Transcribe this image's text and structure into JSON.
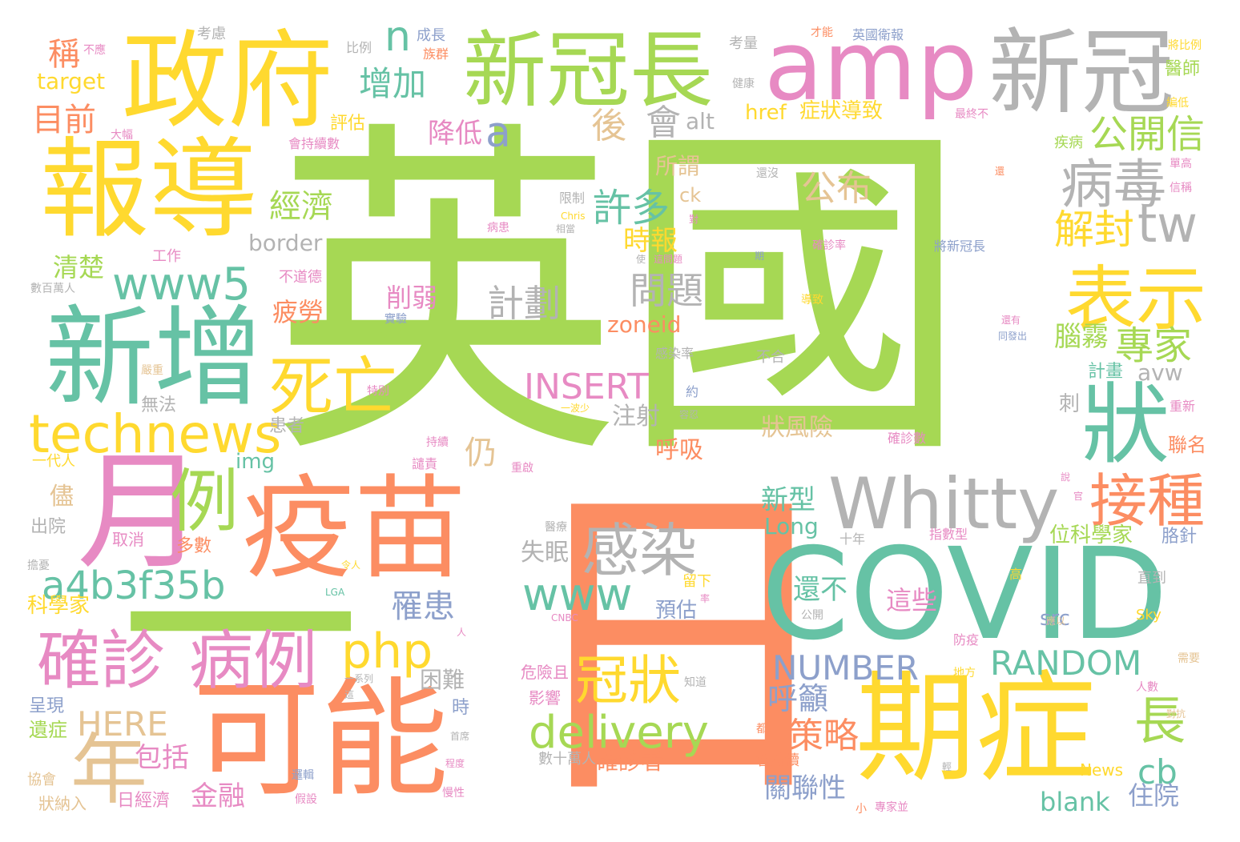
{
  "palette": {
    "green": "#a6d854",
    "orange": "#fc8d62",
    "yellow": "#ffd92f",
    "teal": "#66c2a5",
    "pink": "#e78ac3",
    "gray": "#b3b3b3",
    "tan": "#e5c494",
    "blue": "#8da0cb"
  },
  "words": [
    {
      "text": "英國",
      "color": "#a6d854"
    },
    {
      "text": "日",
      "color": "#fc8d62"
    },
    {
      "text": "一",
      "color": "#a6d854"
    },
    {
      "text": "政府",
      "color": "#ffd92f"
    },
    {
      "text": "報導",
      "color": "#ffd92f"
    },
    {
      "text": "新增",
      "color": "#66c2a5"
    },
    {
      "text": "月",
      "color": "#e78ac3"
    },
    {
      "text": "疫苗",
      "color": "#fc8d62"
    },
    {
      "text": "可能",
      "color": "#fc8d62"
    },
    {
      "text": "新冠長",
      "color": "#a6d854"
    },
    {
      "text": "amp",
      "color": "#e78ac3"
    },
    {
      "text": "新冠",
      "color": "#b3b3b3"
    },
    {
      "text": "COVID",
      "color": "#66c2a5"
    },
    {
      "text": "期症",
      "color": "#ffd92f"
    },
    {
      "text": "狀",
      "color": "#66c2a5"
    },
    {
      "text": "表示",
      "color": "#ffd92f"
    },
    {
      "text": "Whitty",
      "color": "#b3b3b3"
    },
    {
      "text": "接種",
      "color": "#fc8d62"
    },
    {
      "text": "病毒",
      "color": "#b3b3b3"
    },
    {
      "text": "tw",
      "color": "#b3b3b3"
    },
    {
      "text": "公開信",
      "color": "#a6d854"
    },
    {
      "text": "解封",
      "color": "#ffd92f"
    },
    {
      "text": "專家",
      "color": "#a6d854"
    },
    {
      "text": "腦霧",
      "color": "#a6d854"
    },
    {
      "text": "avw",
      "color": "#b3b3b3"
    },
    {
      "text": "確診",
      "color": "#e78ac3"
    },
    {
      "text": "病例",
      "color": "#e78ac3"
    },
    {
      "text": "年",
      "color": "#e5c494"
    },
    {
      "text": "例",
      "color": "#a6d854"
    },
    {
      "text": "technews",
      "color": "#ffd92f"
    },
    {
      "text": "a4b3f35b",
      "color": "#66c2a5"
    },
    {
      "text": "死亡",
      "color": "#ffd92f"
    },
    {
      "text": "www5",
      "color": "#66c2a5"
    },
    {
      "text": "感染",
      "color": "#b3b3b3"
    },
    {
      "text": "www",
      "color": "#66c2a5"
    },
    {
      "text": "php",
      "color": "#ffd92f"
    },
    {
      "text": "冠狀",
      "color": "#ffd92f"
    },
    {
      "text": "delivery",
      "color": "#a6d854"
    },
    {
      "text": "NUMBER",
      "color": "#8da0cb"
    },
    {
      "text": "RANDOM",
      "color": "#66c2a5"
    },
    {
      "text": "INSERT",
      "color": "#e78ac3"
    },
    {
      "text": "長",
      "color": "#a6d854"
    },
    {
      "text": "cb",
      "color": "#66c2a5"
    },
    {
      "text": "策略",
      "color": "#fc8d62"
    },
    {
      "text": "呼籲",
      "color": "#8da0cb"
    },
    {
      "text": "公布",
      "color": "#e5c494"
    },
    {
      "text": "許多",
      "color": "#66c2a5"
    },
    {
      "text": "計劃",
      "color": "#b3b3b3"
    },
    {
      "text": "問題",
      "color": "#b3b3b3"
    },
    {
      "text": "增加",
      "color": "#66c2a5"
    },
    {
      "text": "n",
      "color": "#66c2a5"
    },
    {
      "text": "a",
      "color": "#8da0cb"
    },
    {
      "text": "會",
      "color": "#b3b3b3"
    },
    {
      "text": "降低",
      "color": "#e78ac3"
    },
    {
      "text": "後",
      "color": "#e5c494"
    },
    {
      "text": "目前",
      "color": "#fc8d62"
    },
    {
      "text": "稱",
      "color": "#fc8d62"
    },
    {
      "text": "經濟",
      "color": "#a6d854"
    },
    {
      "text": "時報",
      "color": "#ffd92f"
    },
    {
      "text": "削弱",
      "color": "#e78ac3"
    },
    {
      "text": "罹患",
      "color": "#8da0cb"
    },
    {
      "text": "HERE",
      "color": "#e5c494"
    },
    {
      "text": "包括",
      "color": "#e78ac3"
    },
    {
      "text": "金融",
      "color": "#e78ac3"
    },
    {
      "text": "關聯性",
      "color": "#8da0cb"
    },
    {
      "text": "住院",
      "color": "#8da0cb"
    },
    {
      "text": "blank",
      "color": "#66c2a5"
    },
    {
      "text": "確診者",
      "color": "#fc8d62"
    },
    {
      "text": "這些",
      "color": "#e78ac3"
    },
    {
      "text": "還不",
      "color": "#66c2a5"
    },
    {
      "text": "新型",
      "color": "#66c2a5"
    },
    {
      "text": "Long",
      "color": "#66c2a5"
    },
    {
      "text": "狀風險",
      "color": "#e5c494"
    },
    {
      "text": "zoneid",
      "color": "#fc8d62"
    },
    {
      "text": "href",
      "color": "#ffd92f"
    },
    {
      "text": "症狀導致",
      "color": "#ffd92f"
    },
    {
      "text": "alt",
      "color": "#b3b3b3"
    },
    {
      "text": "target",
      "color": "#ffd92f"
    },
    {
      "text": "清楚",
      "color": "#a6d854"
    },
    {
      "text": "疲勞",
      "color": "#fc8d62"
    },
    {
      "text": "border",
      "color": "#b3b3b3"
    },
    {
      "text": "img",
      "color": "#66c2a5"
    },
    {
      "text": "注射",
      "color": "#b3b3b3"
    },
    {
      "text": "呼吸",
      "color": "#fc8d62"
    },
    {
      "text": "仍",
      "color": "#e5c494"
    },
    {
      "text": "失眠",
      "color": "#b3b3b3"
    },
    {
      "text": "預估",
      "color": "#8da0cb"
    },
    {
      "text": "困難",
      "color": "#b3b3b3"
    },
    {
      "text": "src",
      "color": "#8da0cb"
    },
    {
      "text": "位科學家",
      "color": "#a6d854"
    },
    {
      "text": "計畫",
      "color": "#66c2a5"
    },
    {
      "text": "科學家",
      "color": "#ffd92f"
    },
    {
      "text": "所謂",
      "color": "#e5c494"
    },
    {
      "text": "ck",
      "color": "#e5c494"
    },
    {
      "text": "儘",
      "color": "#e5c494"
    },
    {
      "text": "出院",
      "color": "#b3b3b3"
    },
    {
      "text": "無法",
      "color": "#b3b3b3"
    },
    {
      "text": "患者",
      "color": "#b3b3b3"
    },
    {
      "text": "一代人",
      "color": "#ffd92f"
    },
    {
      "text": "多數",
      "color": "#fc8d62"
    },
    {
      "text": "取消",
      "color": "#e78ac3"
    },
    {
      "text": "遺症",
      "color": "#a6d854"
    },
    {
      "text": "呈現",
      "color": "#8da0cb"
    },
    {
      "text": "日經濟",
      "color": "#e78ac3"
    },
    {
      "text": "狀納入",
      "color": "#e5c494"
    },
    {
      "text": "協會",
      "color": "#e5c494"
    },
    {
      "text": "時",
      "color": "#8da0cb"
    },
    {
      "text": "影響",
      "color": "#e78ac3"
    },
    {
      "text": "危險且",
      "color": "#e78ac3"
    },
    {
      "text": "數十萬人",
      "color": "#b3b3b3"
    },
    {
      "text": "會持續",
      "color": "#fc8d62"
    },
    {
      "text": "News",
      "color": "#ffd92f"
    },
    {
      "text": "醫師",
      "color": "#a6d854"
    },
    {
      "text": "疾病",
      "color": "#a6d854"
    },
    {
      "text": "聯名",
      "color": "#fc8d62"
    },
    {
      "text": "刺",
      "color": "#b3b3b3"
    },
    {
      "text": "胳針",
      "color": "#8da0cb"
    },
    {
      "text": "直到",
      "color": "#b3b3b3"
    },
    {
      "text": "Sky",
      "color": "#ffd92f"
    },
    {
      "text": "英國衛報",
      "color": "#8da0cb"
    },
    {
      "text": "成長",
      "color": "#8da0cb"
    },
    {
      "text": "考慮",
      "color": "#b3b3b3"
    },
    {
      "text": "考量",
      "color": "#b3b3b3"
    },
    {
      "text": "比例",
      "color": "#b3b3b3"
    },
    {
      "text": "族群",
      "color": "#fc8d62"
    },
    {
      "text": "才能",
      "color": "#fc8d62"
    },
    {
      "text": "不應",
      "color": "#e78ac3"
    },
    {
      "text": "大幅",
      "color": "#e78ac3"
    },
    {
      "text": "健康",
      "color": "#b3b3b3"
    },
    {
      "text": "評估",
      "color": "#ffd92f"
    },
    {
      "text": "會持續數",
      "color": "#e78ac3"
    },
    {
      "text": "工作",
      "color": "#e78ac3"
    },
    {
      "text": "不道德",
      "color": "#e78ac3"
    },
    {
      "text": "數百萬人",
      "color": "#b3b3b3"
    },
    {
      "text": "限制",
      "color": "#b3b3b3"
    },
    {
      "text": "Chris",
      "color": "#ffd92f"
    },
    {
      "text": "病患",
      "color": "#e78ac3"
    },
    {
      "text": "確診率",
      "color": "#e78ac3"
    },
    {
      "text": "將新冠長",
      "color": "#8da0cb"
    },
    {
      "text": "還沒",
      "color": "#b3b3b3"
    },
    {
      "text": "導致",
      "color": "#ffd92f"
    },
    {
      "text": "不合",
      "color": "#b3b3b3"
    },
    {
      "text": "感染率",
      "color": "#b3b3b3"
    },
    {
      "text": "特別",
      "color": "#e78ac3"
    },
    {
      "text": "實驗",
      "color": "#8da0cb"
    },
    {
      "text": "失能",
      "color": "#a6d854"
    },
    {
      "text": "醫療",
      "color": "#b3b3b3"
    },
    {
      "text": "留下",
      "color": "#ffd92f"
    },
    {
      "text": "確診數",
      "color": "#e78ac3"
    },
    {
      "text": "指數型",
      "color": "#e78ac3"
    },
    {
      "text": "十年",
      "color": "#b3b3b3"
    },
    {
      "text": "重新",
      "color": "#e78ac3"
    },
    {
      "text": "譴責",
      "color": "#e78ac3"
    },
    {
      "text": "重啟",
      "color": "#e78ac3"
    },
    {
      "text": "持續",
      "color": "#e78ac3"
    },
    {
      "text": "防疫",
      "color": "#e78ac3"
    },
    {
      "text": "約",
      "color": "#8da0cb"
    },
    {
      "text": "公開",
      "color": "#b3b3b3"
    },
    {
      "text": "CNBC",
      "color": "#e78ac3"
    },
    {
      "text": "LGA",
      "color": "#66c2a5"
    },
    {
      "text": "單高",
      "color": "#e78ac3"
    },
    {
      "text": "信稱",
      "color": "#e78ac3"
    },
    {
      "text": "將比例",
      "color": "#ffd92f"
    },
    {
      "text": "最終不",
      "color": "#e78ac3"
    },
    {
      "text": "編低",
      "color": "#ffd92f"
    },
    {
      "text": "嚴重",
      "color": "#e5c494"
    },
    {
      "text": "需要",
      "color": "#e5c494"
    },
    {
      "text": "人數",
      "color": "#e78ac3"
    },
    {
      "text": "對抗",
      "color": "#e5c494"
    },
    {
      "text": "首席",
      "color": "#b3b3b3"
    },
    {
      "text": "邏輯",
      "color": "#8da0cb"
    },
    {
      "text": "慢性",
      "color": "#e78ac3"
    },
    {
      "text": "專家並",
      "color": "#e78ac3"
    },
    {
      "text": "小",
      "color": "#fc8d62"
    },
    {
      "text": "假設",
      "color": "#e78ac3"
    },
    {
      "text": "擔憂",
      "color": "#b3b3b3"
    },
    {
      "text": "令人",
      "color": "#ffd92f"
    },
    {
      "text": "一系列",
      "color": "#b3b3b3"
    },
    {
      "text": "知道",
      "color": "#b3b3b3"
    },
    {
      "text": "地方",
      "color": "#ffd92f"
    },
    {
      "text": "都",
      "color": "#fc8d62"
    },
    {
      "text": "輕",
      "color": "#b3b3b3"
    },
    {
      "text": "同發出",
      "color": "#8da0cb"
    },
    {
      "text": "還有",
      "color": "#e78ac3"
    },
    {
      "text": "容忍",
      "color": "#b3b3b3"
    },
    {
      "text": "一波少",
      "color": "#ffd92f"
    },
    {
      "text": "程度",
      "color": "#e78ac3"
    },
    {
      "text": "高",
      "color": "#ffd92f"
    },
    {
      "text": "說",
      "color": "#e78ac3"
    },
    {
      "text": "官",
      "color": "#e78ac3"
    },
    {
      "text": "應以",
      "color": "#e5c494"
    },
    {
      "text": "期",
      "color": "#8da0cb"
    },
    {
      "text": "對",
      "color": "#e78ac3"
    },
    {
      "text": "使",
      "color": "#b3b3b3"
    },
    {
      "text": "這問題",
      "color": "#e78ac3"
    },
    {
      "text": "相當",
      "color": "#b3b3b3"
    },
    {
      "text": "還",
      "color": "#fc8d62"
    },
    {
      "text": "率",
      "color": "#e78ac3"
    },
    {
      "text": "人",
      "color": "#e78ac3"
    },
    {
      "text": "這",
      "color": "#b3b3b3"
    }
  ]
}
